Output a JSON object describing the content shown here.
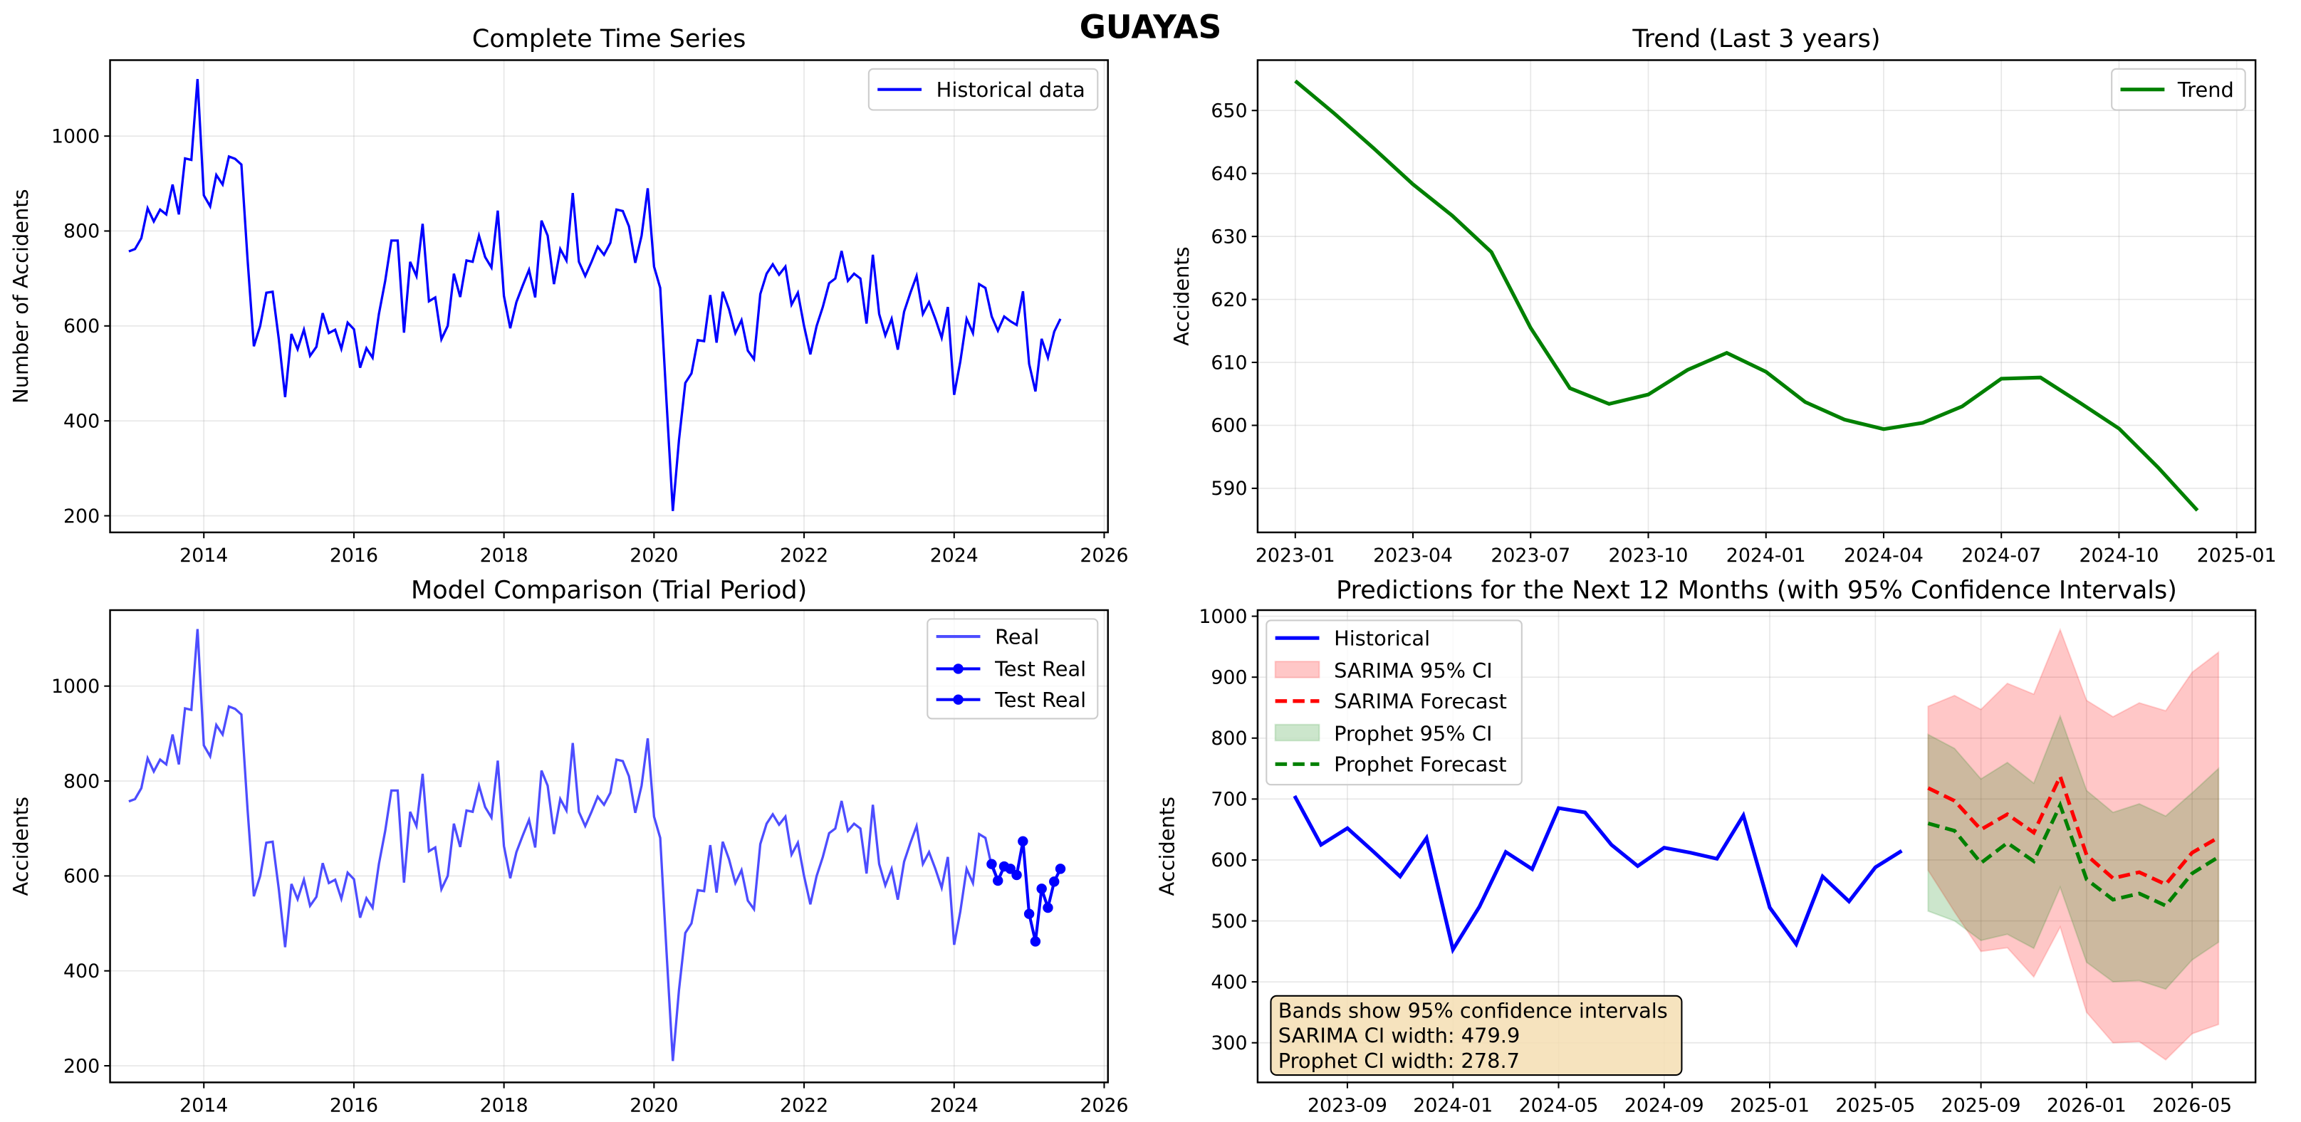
{
  "suptitle": "GUAYAS",
  "panels": {
    "complete": {
      "title": "Complete Time Series",
      "ylabel": "Number of Accidents",
      "legend": [
        "Historical data"
      ],
      "yticks": [
        "200",
        "400",
        "600",
        "800",
        "1000"
      ],
      "xticks": [
        "2014",
        "2016",
        "2018",
        "2020",
        "2022",
        "2024",
        "2026"
      ]
    },
    "trend": {
      "title": "Trend (Last 3 years)",
      "ylabel": "Accidents",
      "legend": [
        "Trend"
      ],
      "yticks": [
        "590",
        "600",
        "610",
        "620",
        "630",
        "640",
        "650"
      ],
      "xticks": [
        "2023-01",
        "2023-04",
        "2023-07",
        "2023-10",
        "2024-01",
        "2024-04",
        "2024-07",
        "2024-10",
        "2025-01"
      ]
    },
    "comparison": {
      "title": "Model Comparison (Trial Period)",
      "ylabel": "Accidents",
      "legend": [
        "Real",
        "Test Real",
        "Test Real"
      ],
      "yticks": [
        "200",
        "400",
        "600",
        "800",
        "1000"
      ],
      "xticks": [
        "2014",
        "2016",
        "2018",
        "2020",
        "2022",
        "2024",
        "2026"
      ]
    },
    "forecast": {
      "title": "Predictions for the Next 12 Months (with 95% Confidence Intervals)",
      "ylabel": "Accidents",
      "legend": [
        "Historical",
        "SARIMA 95% CI",
        "SARIMA Forecast",
        "Prophet 95% CI",
        "Prophet Forecast"
      ],
      "yticks": [
        "300",
        "400",
        "500",
        "600",
        "700",
        "800",
        "900",
        "1000"
      ],
      "xticks": [
        "2023-09",
        "2024-01",
        "2024-05",
        "2024-09",
        "2025-01",
        "2025-05",
        "2025-09",
        "2026-01",
        "2026-05"
      ],
      "annotation": [
        "Bands show 95% confidence intervals",
        "SARIMA CI width: 479.9",
        "Prophet CI width: 278.7"
      ]
    }
  },
  "colors": {
    "historical": "#0000ff",
    "real": "#4d4dff",
    "trend": "#008000",
    "sarima": "#ff0000",
    "sarima_ci": "#ffc0c0",
    "prophet": "#008000",
    "prophet_ci": "#b0d8b0",
    "annotation_bg": "#f5deb3"
  },
  "chart_data": [
    {
      "type": "line",
      "title": "Complete Time Series",
      "xlabel": "",
      "ylabel": "Number of Accidents",
      "x_start": "2013-01",
      "x_freq": "monthly",
      "xlim": [
        2012.75,
        2026.05
      ],
      "ylim": [
        165,
        1160
      ],
      "grid": true,
      "legend_position": "upper right",
      "series": [
        {
          "name": "Historical data",
          "values": [
            757,
            762,
            785,
            848,
            820,
            845,
            835,
            898,
            835,
            953,
            950,
            1120,
            875,
            852,
            918,
            898,
            957,
            952,
            940,
            740,
            557,
            600,
            670,
            672,
            572,
            450,
            583,
            551,
            592,
            537,
            556,
            627,
            585,
            592,
            552,
            607,
            593,
            512,
            553,
            533,
            625,
            695,
            780,
            780,
            586,
            735,
            705,
            815,
            652,
            660,
            572,
            600,
            710,
            661,
            738,
            735,
            790,
            745,
            723,
            843,
            663,
            595,
            650,
            685,
            718,
            660,
            822,
            790,
            688,
            762,
            738,
            880,
            735,
            705,
            735,
            767,
            750,
            775,
            845,
            842,
            810,
            733,
            790,
            890,
            725,
            680,
            440,
            210,
            360,
            480,
            500,
            570,
            568,
            665,
            565,
            672,
            635,
            585,
            612,
            548,
            530,
            667,
            710,
            730,
            708,
            725,
            645,
            670,
            600,
            540,
            600,
            640,
            690,
            700,
            758,
            695,
            710,
            700,
            605,
            750,
            625,
            580,
            615,
            550,
            630,
            670,
            705,
            625,
            650,
            615,
            575,
            640,
            455,
            525,
            615,
            585,
            688,
            680,
            620,
            590,
            620,
            610,
            602,
            673,
            520,
            462,
            573,
            533,
            588,
            615
          ]
        }
      ]
    },
    {
      "type": "line",
      "title": "Trend (Last 3 years)",
      "xlabel": "",
      "ylabel": "Accidents",
      "x": [
        "2023-01",
        "2023-02",
        "2023-03",
        "2023-04",
        "2023-05",
        "2023-06",
        "2023-07",
        "2023-08",
        "2023-09",
        "2023-10",
        "2023-11",
        "2023-12",
        "2024-01",
        "2024-02",
        "2024-03",
        "2024-04",
        "2024-05",
        "2024-06",
        "2024-07",
        "2024-08",
        "2024-09",
        "2024-10",
        "2024-11",
        "2024-12"
      ],
      "ylim": [
        583,
        658
      ],
      "grid": true,
      "legend_position": "upper right",
      "series": [
        {
          "name": "Trend",
          "values": [
            654.7,
            649.5,
            644.0,
            638.3,
            633.3,
            627.5,
            615.5,
            605.9,
            603.4,
            604.9,
            608.8,
            611.5,
            608.5,
            603.7,
            600.9,
            599.4,
            600.4,
            603.0,
            607.4,
            607.6,
            603.6,
            599.5,
            593.3,
            586.5
          ]
        }
      ]
    },
    {
      "type": "line",
      "title": "Model Comparison (Trial Period)",
      "xlabel": "",
      "ylabel": "Accidents",
      "xlim": [
        2012.75,
        2026.05
      ],
      "ylim": [
        165,
        1160
      ],
      "grid": true,
      "legend_position": "upper right",
      "series": [
        {
          "name": "Real",
          "x_start": "2013-01",
          "values": "same as Complete Time Series"
        },
        {
          "name": "Test Real",
          "x": [
            "2024-07",
            "2024-08",
            "2024-09",
            "2024-10",
            "2024-11",
            "2024-12",
            "2025-01",
            "2025-02",
            "2025-03",
            "2025-04",
            "2025-05",
            "2025-06"
          ],
          "values": [
            625,
            590,
            620,
            615,
            602,
            673,
            520,
            462,
            573,
            533,
            588,
            615
          ]
        },
        {
          "name": "Test Real",
          "x": [
            "2024-07",
            "2024-08",
            "2024-09",
            "2024-10",
            "2024-11",
            "2024-12",
            "2025-01",
            "2025-02",
            "2025-03",
            "2025-04",
            "2025-05",
            "2025-06"
          ],
          "values": [
            625,
            590,
            620,
            615,
            602,
            673,
            520,
            462,
            573,
            533,
            588,
            615
          ]
        }
      ]
    },
    {
      "type": "line",
      "title": "Predictions for the Next 12 Months (with 95% Confidence Intervals)",
      "xlabel": "",
      "ylabel": "Accidents",
      "ylim": [
        235,
        1010
      ],
      "grid": true,
      "legend_position": "upper left",
      "series": [
        {
          "name": "Historical",
          "x": [
            "2023-07",
            "2023-08",
            "2023-09",
            "2023-10",
            "2023-11",
            "2023-12",
            "2024-01",
            "2024-02",
            "2024-03",
            "2024-04",
            "2024-05",
            "2024-06",
            "2024-07",
            "2024-08",
            "2024-09",
            "2024-10",
            "2024-11",
            "2024-12",
            "2025-01",
            "2025-02",
            "2025-03",
            "2025-04",
            "2025-05",
            "2025-06"
          ],
          "values": [
            705,
            625,
            652,
            613,
            573,
            636,
            453,
            523,
            613,
            585,
            685,
            678,
            625,
            590,
            620,
            612,
            602,
            673,
            522,
            462,
            573,
            532,
            588,
            615
          ]
        },
        {
          "name": "SARIMA Forecast",
          "x": [
            "2025-07",
            "2025-08",
            "2025-09",
            "2025-10",
            "2025-11",
            "2025-12",
            "2026-01",
            "2026-02",
            "2026-03",
            "2026-04",
            "2026-05",
            "2026-06"
          ],
          "values": [
            718,
            697,
            650,
            675,
            645,
            737,
            608,
            570,
            580,
            560,
            612,
            637
          ]
        },
        {
          "name": "SARIMA 95% CI lower",
          "values": [
            583,
            515,
            450,
            456,
            408,
            490,
            350,
            300,
            302,
            272,
            315,
            330
          ]
        },
        {
          "name": "SARIMA 95% CI upper",
          "values": [
            852,
            870,
            847,
            890,
            872,
            978,
            862,
            835,
            858,
            845,
            908,
            941
          ]
        },
        {
          "name": "Prophet Forecast",
          "x": [
            "2025-07",
            "2025-08",
            "2025-09",
            "2025-10",
            "2025-11",
            "2025-12",
            "2026-01",
            "2026-02",
            "2026-03",
            "2026-04",
            "2026-05",
            "2026-06"
          ],
          "values": [
            660,
            648,
            595,
            628,
            598,
            690,
            568,
            535,
            545,
            525,
            578,
            605
          ]
        },
        {
          "name": "Prophet 95% CI lower",
          "values": [
            516,
            500,
            468,
            478,
            455,
            555,
            432,
            400,
            402,
            388,
            436,
            465
          ]
        },
        {
          "name": "Prophet 95% CI upper",
          "values": [
            806,
            783,
            733,
            760,
            726,
            836,
            714,
            678,
            692,
            672,
            710,
            750
          ]
        }
      ],
      "annotations": [
        "Bands show 95% confidence intervals",
        "SARIMA CI width: 479.9",
        "Prophet CI width: 278.7"
      ]
    }
  ]
}
